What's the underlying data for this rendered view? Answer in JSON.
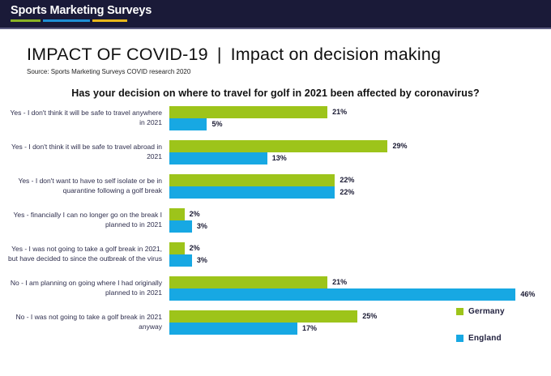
{
  "header": {
    "logo_text": "Sports Marketing Surveys",
    "underline_colors": [
      "#8ab224",
      "#1e8fd5",
      "#e8b71a"
    ]
  },
  "title": {
    "main": "IMPACT OF COVID-19",
    "separator": "|",
    "sub": "Impact on decision making",
    "source": "Source: Sports Marketing Surveys COVID research 2020"
  },
  "chart_data": {
    "type": "bar",
    "orientation": "horizontal",
    "title": "Has your decision on where to travel for golf in 2021 been affected by coronavirus?",
    "categories": [
      "Yes - I don't think it will be safe to travel anywhere in 2021",
      "Yes - I don't think it will be safe to travel abroad in 2021",
      "Yes - I don't want to have to self isolate or be in quarantine following a golf break",
      "Yes - financially I can no longer go on the break I planned to in 2021",
      "Yes - I was not going to take a golf break in 2021, but have decided to since the outbreak of the virus",
      "No - I am planning on going where I had originally planned to in 2021",
      "No - I was not going to take a golf break in 2021 anyway"
    ],
    "series": [
      {
        "name": "Germany",
        "color": "#9dc41a",
        "values": [
          21,
          29,
          22,
          2,
          2,
          21,
          25
        ]
      },
      {
        "name": "England",
        "color": "#17a8e3",
        "values": [
          5,
          13,
          22,
          3,
          3,
          46,
          17
        ]
      }
    ],
    "value_suffix": "%",
    "xlim": [
      0,
      48
    ],
    "grid": false,
    "legend_position": "right-middle",
    "data_labels": true
  }
}
